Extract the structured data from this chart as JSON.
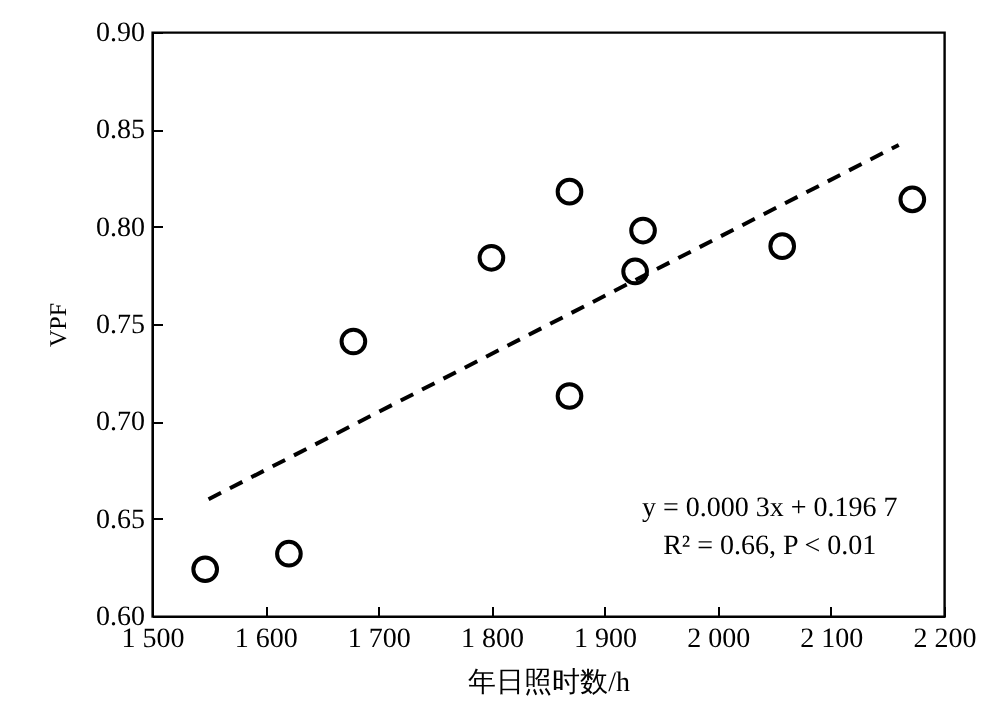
{
  "chart_data": {
    "type": "scatter",
    "xlabel": "年日照时数/h",
    "ylabel": "VPF",
    "xlim": [
      1500,
      2200
    ],
    "ylim": [
      0.6,
      0.9
    ],
    "xticks": [
      {
        "value": 1500,
        "label": "1 500"
      },
      {
        "value": 1600,
        "label": "1 600"
      },
      {
        "value": 1700,
        "label": "1 700"
      },
      {
        "value": 1800,
        "label": "1 800"
      },
      {
        "value": 1900,
        "label": "1 900"
      },
      {
        "value": 2000,
        "label": "2 000"
      },
      {
        "value": 2100,
        "label": "2 100"
      },
      {
        "value": 2200,
        "label": "2 200"
      }
    ],
    "yticks": [
      {
        "value": 0.6,
        "label": "0.60"
      },
      {
        "value": 0.65,
        "label": "0.65"
      },
      {
        "value": 0.7,
        "label": "0.70"
      },
      {
        "value": 0.75,
        "label": "0.75"
      },
      {
        "value": 0.8,
        "label": "0.80"
      },
      {
        "value": 0.85,
        "label": "0.85"
      },
      {
        "value": 0.9,
        "label": "0.90"
      }
    ],
    "annotations": [
      "y = 0.000 3x + 0.196 7",
      "R² = 0.66, P < 0.01"
    ],
    "series": [
      {
        "color": "#000000",
        "marker": "circle",
        "x": [
          1547,
          1621,
          1678,
          1800,
          1869,
          1869,
          1927,
          1934,
          2057,
          2172
        ],
        "values": [
          0.624,
          0.632,
          0.741,
          0.784,
          0.818,
          0.713,
          0.777,
          0.798,
          0.79,
          0.814
        ]
      },
      {
        "type": "line",
        "color": "#000000",
        "marker": "none",
        "line_style": "dashed",
        "x": [
          1550,
          2160
        ],
        "values": [
          0.66,
          0.842
        ]
      }
    ]
  }
}
